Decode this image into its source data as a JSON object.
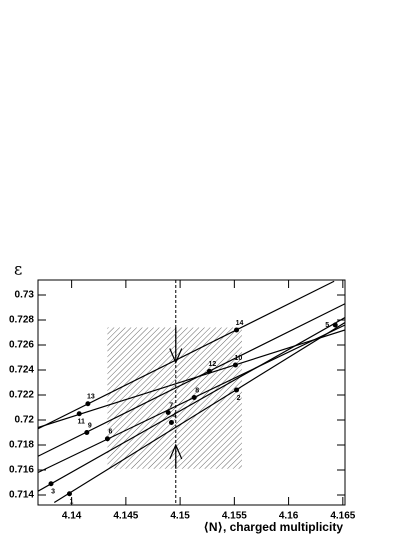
{
  "chart_data": {
    "type": "scatter",
    "x_label": "⟨N⟩, charged multiplicity",
    "y_label": "ε",
    "xlim": [
      4.1369,
      4.1652
    ],
    "ylim": [
      0.7132,
      0.7312
    ],
    "xticks": [
      4.14,
      4.145,
      4.15,
      4.155,
      4.16,
      4.165
    ],
    "yticks": [
      0.714,
      0.716,
      0.718,
      0.72,
      0.722,
      0.724,
      0.726,
      0.728,
      0.73
    ],
    "points": {
      "labels": [
        "1",
        "2",
        "3",
        "4",
        "5",
        "6",
        "7",
        "8",
        "9",
        "10",
        "11",
        "12",
        "13",
        "14"
      ],
      "x": [
        4.1398,
        4.1552,
        4.1381,
        4.1492,
        4.1643,
        4.1433,
        4.1489,
        4.1513,
        4.1414,
        4.1551,
        4.1407,
        4.1527,
        4.1415,
        4.1552
      ],
      "y": [
        0.7141,
        0.7224,
        0.7149,
        0.7198,
        0.7276,
        0.7185,
        0.7206,
        0.7218,
        0.719,
        0.7244,
        0.7205,
        0.7239,
        0.7213,
        0.7272
      ]
    },
    "lines": [
      {
        "x": [
          4.1369,
          4.1642
        ],
        "y": [
          0.7193,
          0.7311
        ]
      },
      {
        "x": [
          4.1369,
          4.1652
        ],
        "y": [
          0.7194,
          0.7272
        ]
      },
      {
        "x": [
          4.1369,
          4.1652
        ],
        "y": [
          0.7171,
          0.7293
        ]
      },
      {
        "x": [
          4.1369,
          4.1652
        ],
        "y": [
          0.7158,
          0.7276
        ]
      },
      {
        "x": [
          4.1369,
          4.1652
        ],
        "y": [
          0.7143,
          0.7282
        ]
      },
      {
        "x": [
          4.1384,
          4.1652
        ],
        "y": [
          0.7134,
          0.7278
        ]
      }
    ],
    "band": {
      "x": [
        4.1433,
        4.1557
      ],
      "y": [
        0.7161,
        0.7274
      ]
    },
    "marker_x": 4.1496,
    "arrow_tips": [
      0.7246,
      0.718
    ]
  }
}
